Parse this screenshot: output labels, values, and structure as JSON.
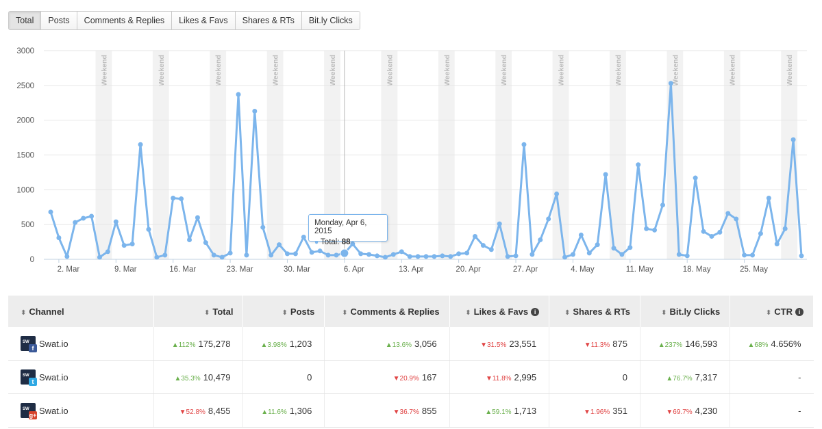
{
  "tabs": [
    "Total",
    "Posts",
    "Comments & Replies",
    "Likes & Favs",
    "Shares & RTs",
    "Bit.ly Clicks"
  ],
  "active_tab": "Total",
  "chart_data": {
    "type": "line",
    "series": [
      {
        "name": "Total",
        "color": "#7cb5ec",
        "values": [
          680,
          310,
          40,
          530,
          590,
          620,
          30,
          110,
          540,
          200,
          220,
          1650,
          430,
          30,
          60,
          880,
          870,
          280,
          600,
          240,
          60,
          30,
          90,
          2370,
          60,
          2130,
          460,
          60,
          210,
          80,
          80,
          320,
          100,
          120,
          60,
          60,
          88,
          220,
          80,
          70,
          50,
          30,
          70,
          110,
          40,
          40,
          40,
          40,
          50,
          40,
          80,
          90,
          330,
          200,
          140,
          510,
          40,
          50,
          1650,
          70,
          280,
          580,
          940,
          30,
          70,
          350,
          90,
          210,
          1220,
          160,
          70,
          170,
          1360,
          440,
          420,
          780,
          2530,
          70,
          50,
          1170,
          400,
          330,
          390,
          660,
          580,
          60,
          60,
          370,
          880,
          220,
          440,
          1720,
          50
        ]
      }
    ],
    "x_start": "Mar 1, 2015",
    "x_ticks": [
      "2. Mar",
      "9. Mar",
      "16. Mar",
      "23. Mar",
      "30. Mar",
      "6. Apr",
      "13. Apr",
      "20. Apr",
      "27. Apr",
      "4. May",
      "11. May",
      "18. May",
      "25. May"
    ],
    "y_ticks": [
      0,
      500,
      1000,
      1500,
      2000,
      2500,
      3000
    ],
    "ylim": [
      0,
      3000
    ],
    "weekend_label": "Weekend",
    "grid": true,
    "tooltip": {
      "date": "Monday, Apr 6, 2015",
      "label": "Total:",
      "value": "88"
    }
  },
  "table": {
    "headers": [
      "Channel",
      "Total",
      "Posts",
      "Comments & Replies",
      "Likes & Favs",
      "Shares & RTs",
      "Bit.ly Clicks",
      "CTR"
    ],
    "info_columns": [
      "Likes & Favs",
      "CTR"
    ],
    "rows": [
      {
        "network": "facebook",
        "name": "Swat.io",
        "cells": [
          {
            "chg": "112%",
            "dir": "up",
            "val": "175,278"
          },
          {
            "chg": "3.98%",
            "dir": "up",
            "val": "1,203"
          },
          {
            "chg": "13.6%",
            "dir": "up",
            "val": "3,056"
          },
          {
            "chg": "31.5%",
            "dir": "down",
            "val": "23,551"
          },
          {
            "chg": "11.3%",
            "dir": "down",
            "val": "875"
          },
          {
            "chg": "237%",
            "dir": "up",
            "val": "146,593"
          },
          {
            "chg": "68%",
            "dir": "up",
            "val": "4.656%"
          }
        ]
      },
      {
        "network": "twitter",
        "name": "Swat.io",
        "cells": [
          {
            "chg": "35.3%",
            "dir": "up",
            "val": "10,479"
          },
          {
            "chg": "",
            "dir": "",
            "val": "0"
          },
          {
            "chg": "20.9%",
            "dir": "down",
            "val": "167"
          },
          {
            "chg": "11.8%",
            "dir": "down",
            "val": "2,995"
          },
          {
            "chg": "",
            "dir": "",
            "val": "0"
          },
          {
            "chg": "76.7%",
            "dir": "up",
            "val": "7,317"
          },
          {
            "chg": "",
            "dir": "",
            "val": "-"
          }
        ]
      },
      {
        "network": "googleplus",
        "name": "Swat.io",
        "cells": [
          {
            "chg": "52.8%",
            "dir": "down",
            "val": "8,455"
          },
          {
            "chg": "11.6%",
            "dir": "up",
            "val": "1,306"
          },
          {
            "chg": "36.7%",
            "dir": "down",
            "val": "855"
          },
          {
            "chg": "59.1%",
            "dir": "up",
            "val": "1,713"
          },
          {
            "chg": "1.96%",
            "dir": "down",
            "val": "351"
          },
          {
            "chg": "69.7%",
            "dir": "down",
            "val": "4,230"
          },
          {
            "chg": "",
            "dir": "",
            "val": "-"
          }
        ]
      }
    ]
  }
}
